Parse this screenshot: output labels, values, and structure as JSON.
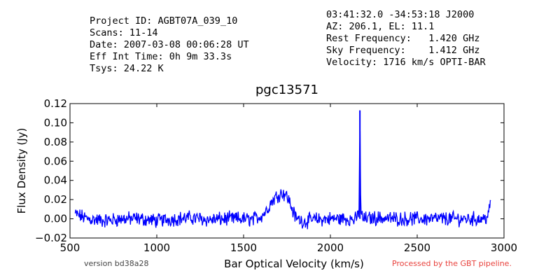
{
  "header": {
    "left_lines": [
      "Project ID: AGBT07A_039_10",
      "Scans: 11-14",
      "Date: 2007-03-08 00:06:28 UT",
      "Eff Int Time: 0h 9m 33.3s",
      "Tsys: 24.22 K"
    ],
    "right_lines": [
      "03:41:32.0 -34:53:18 J2000",
      "AZ: 206.1, EL: 11.1",
      "Rest Frequency:   1.420 GHz",
      "Sky Frequency:    1.412 GHz",
      "Velocity: 1716 km/s OPTI-BAR"
    ]
  },
  "footer": {
    "version": "version bd38a28",
    "processed": "Processed by the GBT pipeline."
  },
  "chart_data": {
    "type": "line",
    "title": "pgc13571",
    "xlabel": "Bar Optical Velocity (km/s)",
    "ylabel": "Flux Density (Jy)",
    "xlim": [
      500,
      3000
    ],
    "ylim": [
      -0.02,
      0.12
    ],
    "xticks": [
      500,
      1000,
      1500,
      2000,
      2500,
      3000
    ],
    "yticks": [
      -0.02,
      0.0,
      0.02,
      0.04,
      0.06,
      0.08,
      0.1,
      0.12
    ],
    "ytick_labels": [
      "−0.02",
      "0.00",
      "0.02",
      "0.04",
      "0.06",
      "0.08",
      "0.10",
      "0.12"
    ],
    "grid": false,
    "line_color": "#0000ff",
    "series": [
      {
        "x": [
          530,
          600,
          700,
          800,
          900,
          1000,
          1100,
          1200,
          1300,
          1400,
          1500,
          1550,
          1600,
          1630,
          1650,
          1680,
          1700,
          1720,
          1740,
          1760,
          1780,
          1800,
          1850,
          1900,
          2000,
          2100,
          2150,
          2165,
          2170,
          2175,
          2190,
          2250,
          2400,
          2600,
          2800,
          2880,
          2900,
          2910,
          2920,
          2925
        ],
        "y": [
          0.005,
          0.0,
          -0.002,
          0.0,
          0.0,
          -0.002,
          0.0,
          0.001,
          -0.001,
          0.0,
          0.0,
          -0.001,
          0.003,
          0.008,
          0.015,
          0.022,
          0.025,
          0.027,
          0.026,
          0.02,
          0.01,
          0.001,
          -0.003,
          -0.001,
          0.0,
          0.0,
          -0.001,
          0.01,
          0.113,
          0.005,
          0.0,
          0.001,
          0.0,
          0.0,
          0.0,
          0.0,
          0.002,
          0.005,
          0.012,
          0.021
        ]
      }
    ]
  }
}
